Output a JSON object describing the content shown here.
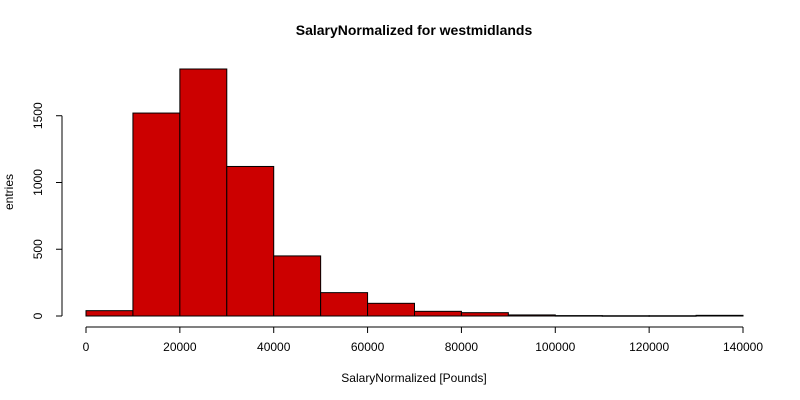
{
  "chart_data": {
    "type": "bar",
    "title": "SalaryNormalized for westmidlands",
    "xlabel": "SalaryNormalized [Pounds]",
    "ylabel": "entries",
    "bin_edges": [
      0,
      10000,
      20000,
      30000,
      40000,
      50000,
      60000,
      70000,
      80000,
      90000,
      100000,
      110000,
      120000,
      130000,
      140000
    ],
    "values": [
      40,
      1520,
      1850,
      1120,
      450,
      175,
      95,
      35,
      25,
      8,
      3,
      2,
      2,
      5
    ],
    "xlim": [
      0,
      140000
    ],
    "ylim": [
      0,
      1850
    ],
    "x_ticks": [
      "0",
      "20000",
      "40000",
      "60000",
      "80000",
      "100000",
      "120000",
      "140000"
    ],
    "x_tick_values": [
      0,
      20000,
      40000,
      60000,
      80000,
      100000,
      120000,
      140000
    ],
    "y_ticks": [
      "0",
      "500",
      "1000",
      "1500"
    ],
    "y_tick_values": [
      0,
      500,
      1000,
      1500
    ],
    "bar_color": "#cc0000",
    "grid": false,
    "legend": "none"
  }
}
